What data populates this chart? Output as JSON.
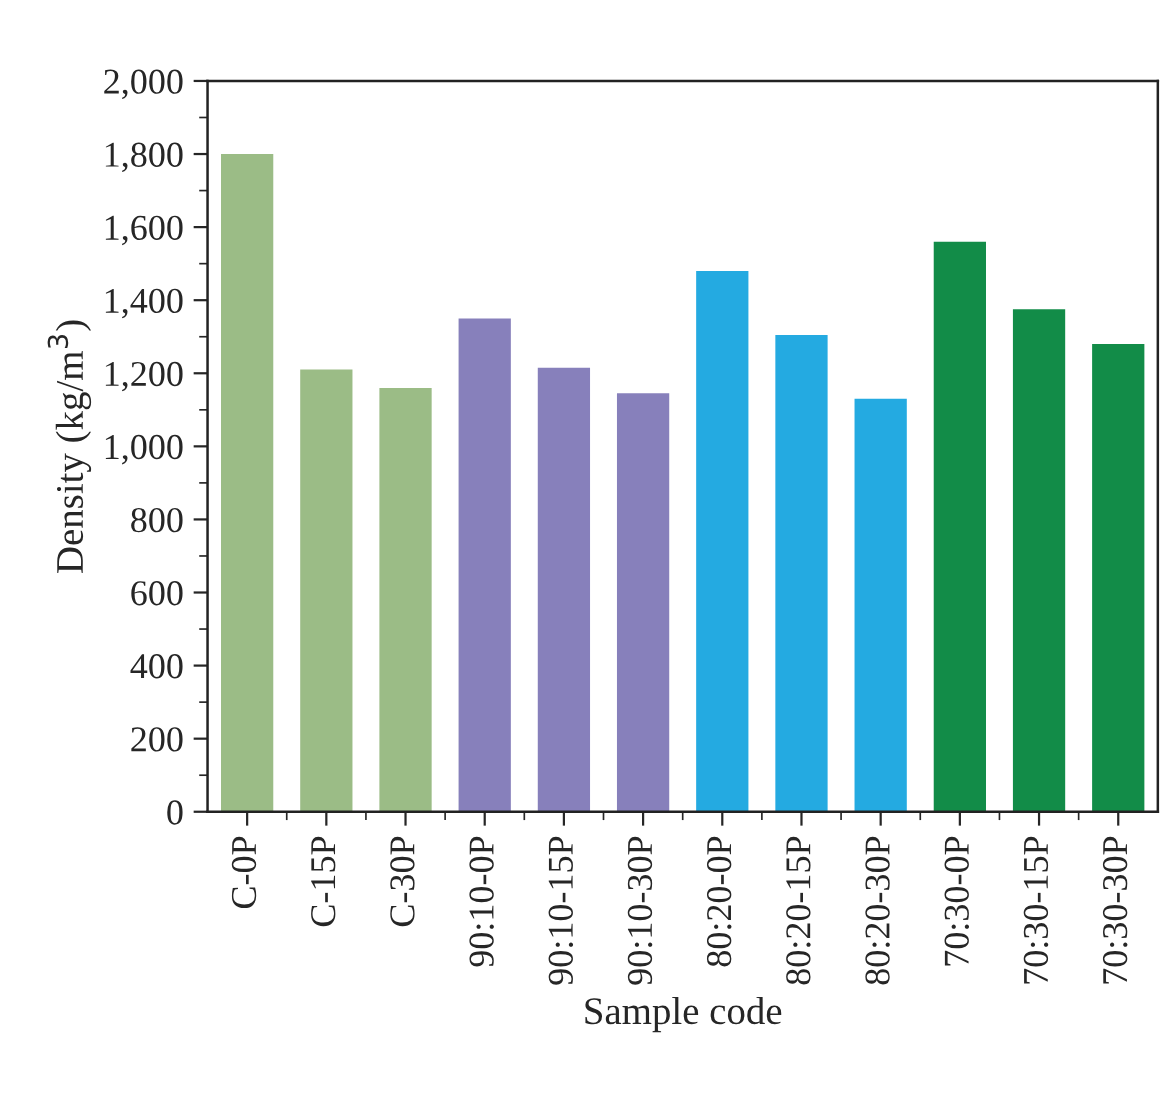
{
  "chart_data": {
    "type": "bar",
    "xlabel": "Sample code",
    "ylabel": "Density (kg/m$^{3}$)",
    "categories": [
      "C-0P",
      "C-15P",
      "C-30P",
      "90:10-0P",
      "90:10-15P",
      "90:10-30P",
      "80:20-0P",
      "80:20-15P",
      "80:20-30P",
      "70:30-0P",
      "70:30-15P",
      "70:30-30P"
    ],
    "values": [
      1800,
      1210,
      1160,
      1350,
      1215,
      1145,
      1480,
      1305,
      1130,
      1560,
      1375,
      1280
    ],
    "colors": [
      "#9bbc86",
      "#9bbc86",
      "#9bbc86",
      "#8780bb",
      "#8780bb",
      "#8780bb",
      "#24aae1",
      "#24aae1",
      "#24aae1",
      "#128c48",
      "#128c48",
      "#128c48"
    ],
    "ylim": [
      0,
      2000
    ],
    "yticks": [
      0,
      {
        "value": 200,
        "label": "200"
      },
      {
        "value": 400,
        "label": "400"
      },
      {
        "value": 600,
        "label": "600"
      },
      {
        "value": 800,
        "label": "800"
      },
      {
        "value": 1000,
        "label": "1,000"
      },
      {
        "value": 1200,
        "label": "1,200"
      },
      {
        "value": 1400,
        "label": "1,400"
      },
      {
        "value": 1600,
        "label": "1,600"
      },
      {
        "value": 1800,
        "label": "1,800"
      },
      {
        "value": 2000,
        "label": "2,000"
      }
    ],
    "grid": false,
    "legend": false
  }
}
